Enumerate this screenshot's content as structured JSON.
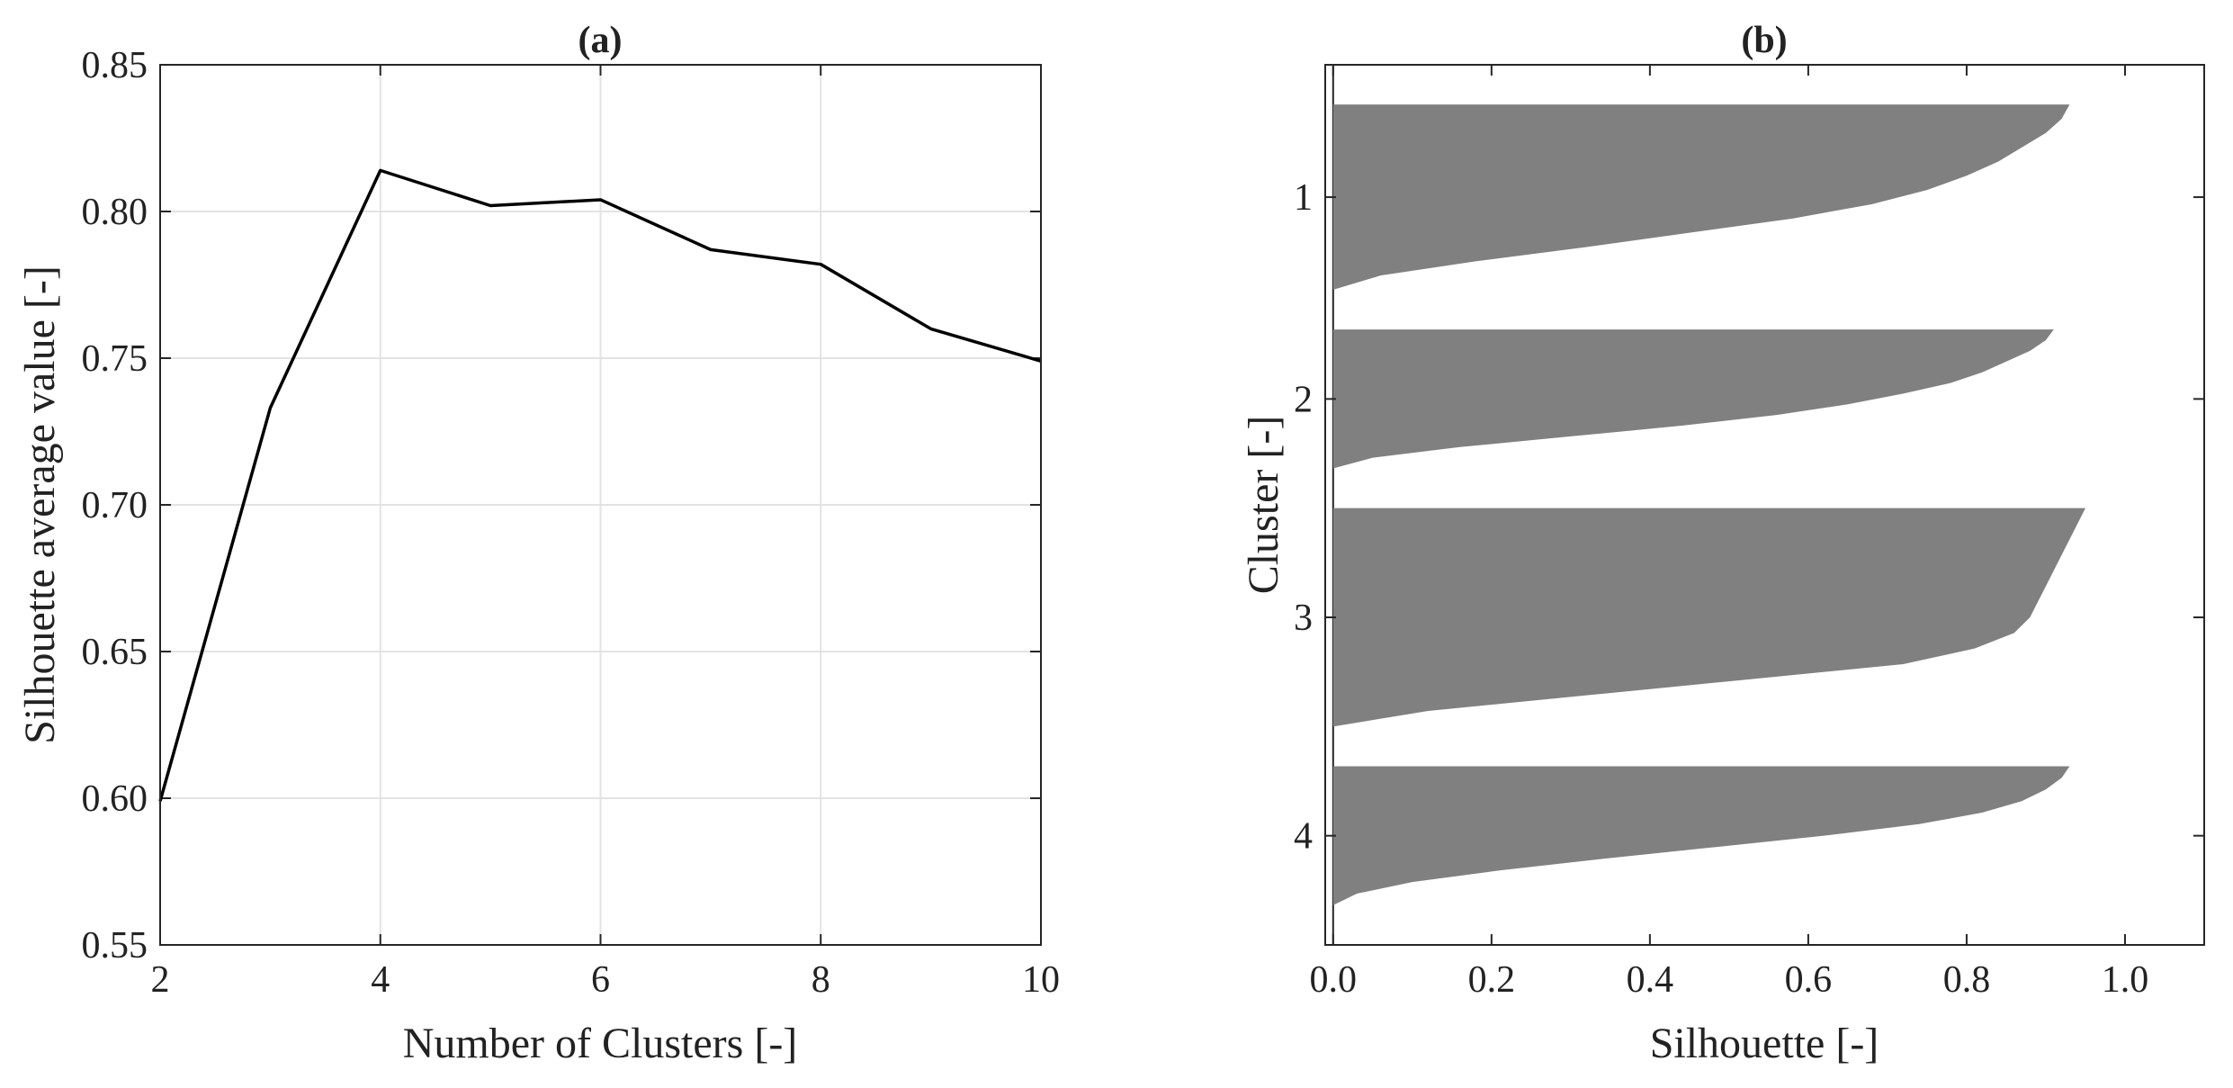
{
  "chart_data": [
    {
      "type": "line",
      "title": "(a)",
      "xlabel": "Number of Clusters  [-]",
      "ylabel": "Silhouette average value  [-]",
      "xlim": [
        2,
        10
      ],
      "ylim": [
        0.55,
        0.85
      ],
      "xticks": [
        2,
        4,
        6,
        8,
        10
      ],
      "xtick_labels": [
        "2",
        "4",
        "6",
        "8",
        "10"
      ],
      "yticks": [
        0.55,
        0.6,
        0.65,
        0.7,
        0.75,
        0.8,
        0.85
      ],
      "ytick_labels": [
        "0.55",
        "0.60",
        "0.65",
        "0.70",
        "0.75",
        "0.80",
        "0.85"
      ],
      "grid": true,
      "line_color": "#000000",
      "series": [
        {
          "name": "Silhouette average value",
          "x": [
            2,
            3,
            4,
            5,
            6,
            7,
            8,
            9,
            10
          ],
          "values": [
            0.599,
            0.733,
            0.814,
            0.802,
            0.804,
            0.787,
            0.782,
            0.76,
            0.749
          ]
        }
      ]
    },
    {
      "type": "area",
      "title": "(b)",
      "xlabel": "Silhouette [-]",
      "ylabel": "Cluster  [-]",
      "xlim": [
        -0.01,
        1.1
      ],
      "xticks": [
        0,
        0.2,
        0.4,
        0.6,
        0.8,
        1.0
      ],
      "xtick_labels": [
        "0.0",
        "0.2",
        "0.4",
        "0.6",
        "0.8",
        "1.0"
      ],
      "ytick_labels": [
        "1",
        "2",
        "3",
        "4"
      ],
      "grid": false,
      "fill_color": "#808080",
      "clusters": [
        {
          "name": "1",
          "size": 28,
          "profile": [
            0.93,
            0.92,
            0.9,
            0.87,
            0.84,
            0.8,
            0.75,
            0.68,
            0.58,
            0.45,
            0.32,
            0.18,
            0.06,
            0.0
          ]
        },
        {
          "name": "2",
          "size": 21,
          "profile": [
            0.91,
            0.9,
            0.88,
            0.85,
            0.82,
            0.78,
            0.72,
            0.65,
            0.56,
            0.44,
            0.3,
            0.16,
            0.05,
            0.0
          ]
        },
        {
          "name": "3",
          "size": 33,
          "profile": [
            0.95,
            0.94,
            0.93,
            0.92,
            0.91,
            0.9,
            0.89,
            0.88,
            0.86,
            0.81,
            0.72,
            0.52,
            0.32,
            0.12,
            0.0
          ]
        },
        {
          "name": "4",
          "size": 21,
          "profile": [
            0.93,
            0.92,
            0.9,
            0.87,
            0.82,
            0.74,
            0.62,
            0.48,
            0.34,
            0.21,
            0.1,
            0.03,
            0.0
          ]
        }
      ]
    }
  ]
}
